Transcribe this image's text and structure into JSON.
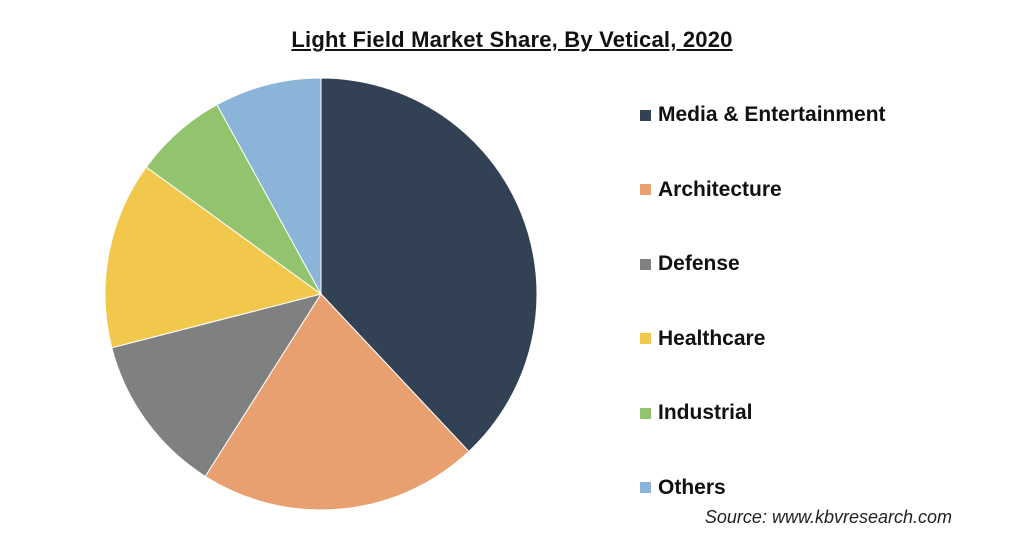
{
  "chart_data": {
    "type": "pie",
    "title": "Light Field  Market Share, By Vetical, 2020",
    "categories": [
      "Media & Entertainment",
      "Architecture",
      "Defense",
      "Healthcare",
      "Industrial",
      "Others"
    ],
    "values": [
      38,
      21,
      12,
      14,
      7,
      8
    ],
    "colors": [
      "#334155",
      "#e8a070",
      "#808080",
      "#f2c84c",
      "#92c46e",
      "#8ab4d8"
    ],
    "legend_position": "right",
    "start_angle_deg": 0,
    "direction": "clockwise",
    "source": "Source: www.kbvresearch.com"
  }
}
